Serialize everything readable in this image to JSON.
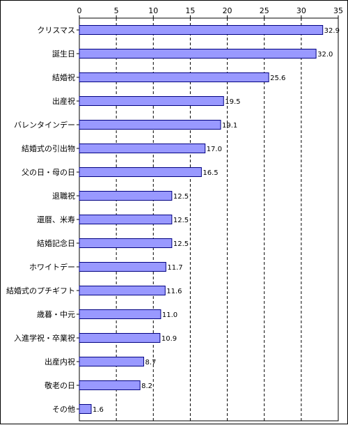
{
  "chart_data": {
    "type": "bar",
    "orientation": "horizontal",
    "categories": [
      "クリスマス",
      "誕生日",
      "結婚祝",
      "出産祝",
      "バレンタインデー",
      "結婚式の引出物",
      "父の日・母の日",
      "退職祝",
      "還暦、米寿",
      "結婚記念日",
      "ホワイトデー",
      "結婚式のプチギフト",
      "歳暮・中元",
      "入進学祝・卒業祝",
      "出産内祝",
      "敬老の日",
      "その他"
    ],
    "values": [
      32.9,
      32.0,
      25.6,
      19.5,
      19.1,
      17.0,
      16.5,
      12.5,
      12.5,
      12.5,
      11.7,
      11.6,
      11.0,
      10.9,
      8.7,
      8.2,
      1.6
    ],
    "value_labels": [
      "32.9",
      "32.0",
      "25.6",
      "19.5",
      "19.1",
      "17.0",
      "16.5",
      "12.5",
      "12.5",
      "12.5",
      "11.7",
      "11.6",
      "11.0",
      "10.9",
      "8.7",
      "8.2",
      "1.6"
    ],
    "xlim": [
      0,
      35
    ],
    "xticks": [
      "0",
      "5",
      "10",
      "15",
      "20",
      "25",
      "30",
      "35"
    ],
    "tick_values": [
      0,
      5,
      10,
      15,
      20,
      25,
      30,
      35
    ],
    "axis_position": "top",
    "grid": "vertical dashed",
    "bar_color": "#9999ff",
    "bar_edge_color": "#000080",
    "title": "",
    "xlabel": "",
    "ylabel": ""
  }
}
